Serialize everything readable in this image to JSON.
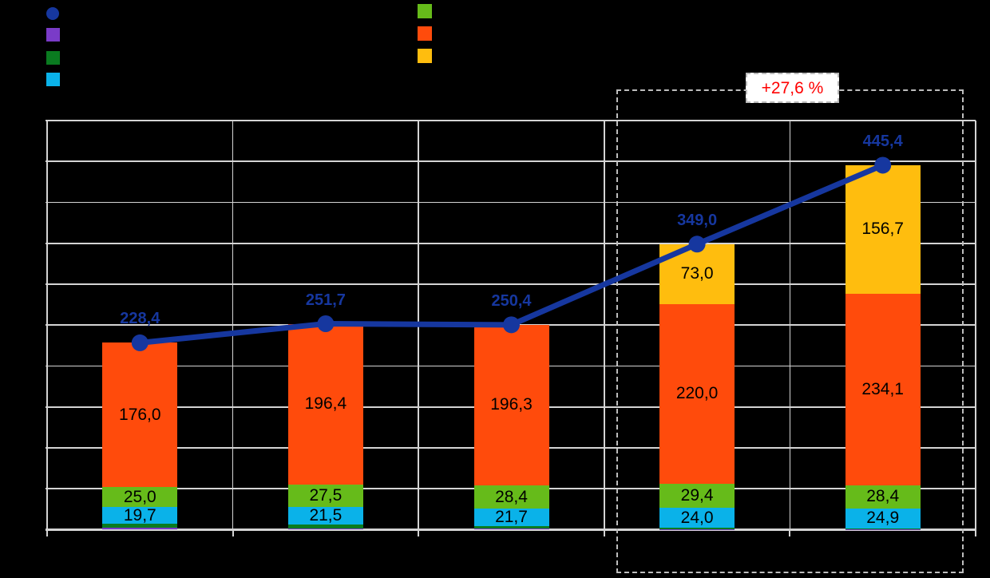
{
  "canvas": {
    "background": "#000000"
  },
  "legend": {
    "left_items": [
      {
        "series": "line-total",
        "marker": "circle",
        "color": "#16379F"
      },
      {
        "series": "stack-purple",
        "marker": "square",
        "color": "#7A3BC8"
      },
      {
        "series": "stack-dark-green",
        "marker": "square",
        "color": "#0A7B20"
      },
      {
        "series": "stack-cyan",
        "marker": "square",
        "color": "#0AB2E9"
      }
    ],
    "right_items": [
      {
        "series": "stack-light-green",
        "marker": "square",
        "color": "#66BB1A"
      },
      {
        "series": "stack-orange",
        "marker": "square",
        "color": "#FF4B0C"
      },
      {
        "series": "stack-yellow",
        "marker": "square",
        "color": "#FFBD0E"
      }
    ]
  },
  "annotation": {
    "label": "+27,6 %",
    "text_color": "#FF0000"
  },
  "chart_data": {
    "type": "bar",
    "subtype": "stacked-bars-with-line-overlay",
    "categories": [
      "",
      "",
      "",
      "",
      ""
    ],
    "series": [
      {
        "name": "purple",
        "color": "#7A3BC8",
        "values": [
          2.0,
          1.8,
          1.0,
          0.8,
          0.4
        ],
        "labels": [
          "",
          "",
          "",
          "",
          ""
        ]
      },
      {
        "name": "dark-green",
        "color": "#0A7B20",
        "values": [
          5.7,
          4.5,
          3.0,
          1.8,
          0.9
        ],
        "labels": [
          "",
          "",
          "",
          "",
          ""
        ]
      },
      {
        "name": "cyan",
        "color": "#0AB2E9",
        "values": [
          19.7,
          21.5,
          21.7,
          24.0,
          24.9
        ],
        "labels": [
          "19,7",
          "21,5",
          "21,7",
          "24,0",
          "24,9"
        ]
      },
      {
        "name": "light-green",
        "color": "#66BB1A",
        "values": [
          25.0,
          27.5,
          28.4,
          29.4,
          28.4
        ],
        "labels": [
          "25,0",
          "27,5",
          "28,4",
          "29,4",
          "28,4"
        ]
      },
      {
        "name": "orange",
        "color": "#FF4B0C",
        "values": [
          176.0,
          196.4,
          196.3,
          220.0,
          234.1
        ],
        "labels": [
          "176,0",
          "196,4",
          "196,3",
          "220,0",
          "234,1"
        ]
      },
      {
        "name": "yellow",
        "color": "#FFBD0E",
        "values": [
          0,
          0,
          0,
          73.0,
          156.7
        ],
        "labels": [
          "",
          "",
          "",
          "73,0",
          "156,7"
        ]
      }
    ],
    "line_series": {
      "name": "total",
      "color": "#16379F",
      "values": [
        228.4,
        251.7,
        250.4,
        349.0,
        445.4
      ],
      "labels": [
        "228,4",
        "251,7",
        "250,4",
        "349,0",
        "445,4"
      ]
    },
    "ylim": [
      0,
      500
    ],
    "grid_step": 50,
    "grid": "on",
    "legend_position": "top",
    "highlight": {
      "label": "+27,6 %",
      "category_indexes": [
        3,
        4
      ]
    }
  }
}
